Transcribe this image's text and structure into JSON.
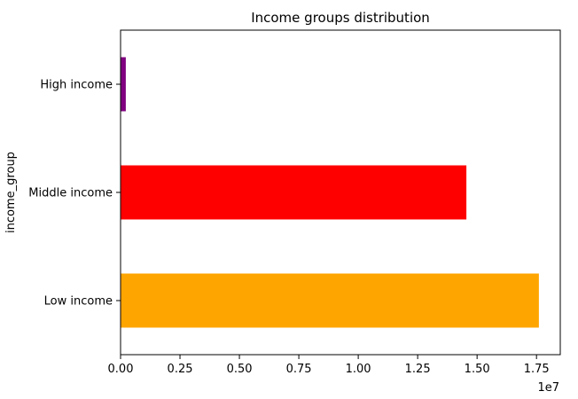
{
  "chart_data": {
    "type": "bar",
    "orientation": "horizontal",
    "title": "Income groups distribution",
    "xlabel": "",
    "ylabel": "income_group",
    "x_offset_label": "1e7",
    "x_scale": 10000000,
    "xlim": [
      0,
      18500000
    ],
    "x_ticks": [
      0,
      2500000,
      5000000,
      7500000,
      10000000,
      12500000,
      15000000,
      17500000
    ],
    "x_tick_labels": [
      "0.00",
      "0.25",
      "0.50",
      "0.75",
      "1.00",
      "1.25",
      "1.50",
      "1.75"
    ],
    "categories": [
      "Low income",
      "Middle income",
      "High income"
    ],
    "values": [
      17600000,
      14550000,
      220000
    ],
    "colors": [
      "#FFA500",
      "#FF0000",
      "#800080"
    ],
    "grid": false,
    "legend": "none"
  }
}
